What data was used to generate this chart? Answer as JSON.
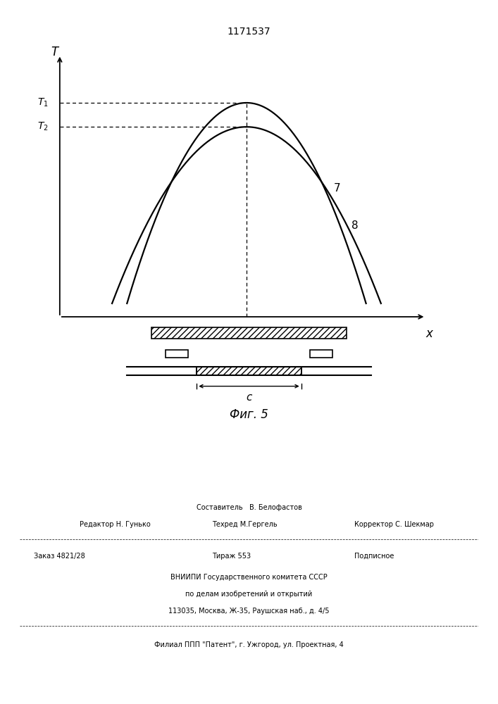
{
  "title": "1171537",
  "bg_color": "#ffffff",
  "curve7_label": "7",
  "curve8_label": "8",
  "T1_label": "$T_1$",
  "T2_label": "$T_2$",
  "T_axis_label": "T",
  "X_axis_label": "x",
  "fig_caption": "Фиг. 5",
  "footer_line1": "Составитель   В. Белофастов",
  "footer_line2_left": "Редактор Н. Гунько",
  "footer_line2_mid": "Техред М.Гергель",
  "footer_line2_right": "Корректор С. Шекмар",
  "footer_line3_left": "Заказ 4821/28",
  "footer_line3_mid": "Тираж 553",
  "footer_line3_right": "Подписное",
  "footer_line4": "ВНИИПИ Государственного комитета СССР",
  "footer_line5": "по делам изобретений и открытий",
  "footer_line6": "113035, Москва, Ж-35, Раушская наб., д. 4/5",
  "footer_line7": "Филиал ППП \"Патент\", г. Ужгород, ул. Проектная, 4",
  "hatch_pattern": "////",
  "line_color": "#000000"
}
